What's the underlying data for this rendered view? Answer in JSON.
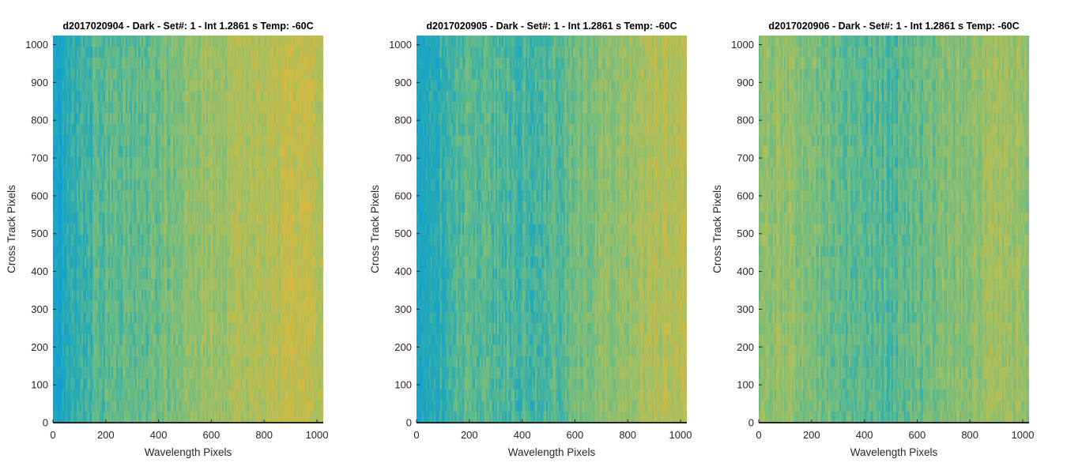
{
  "chart_data": [
    {
      "type": "heatmap",
      "title": "d2017020904 - Dark - Set#: 1 - Int 1.2861 s Temp: -60C",
      "xlabel": "Wavelength Pixels",
      "ylabel": "Cross Track Pixels",
      "xlim": [
        0,
        1024
      ],
      "ylim": [
        0,
        1024
      ],
      "xticks": [
        "0",
        "200",
        "400",
        "600",
        "800",
        "1000"
      ],
      "yticks": [
        "0",
        "100",
        "200",
        "300",
        "400",
        "500",
        "600",
        "700",
        "800",
        "900",
        "1000"
      ],
      "colormap": [
        "#0f9dd4",
        "#28abb4",
        "#6cbc84",
        "#a8bf5e",
        "#d7b93f"
      ],
      "column_level_profile": [
        {
          "x": 0,
          "level": 0.05
        },
        {
          "x": 100,
          "level": 0.3
        },
        {
          "x": 200,
          "level": 0.45
        },
        {
          "x": 300,
          "level": 0.45
        },
        {
          "x": 400,
          "level": 0.5
        },
        {
          "x": 500,
          "level": 0.62
        },
        {
          "x": 600,
          "level": 0.7
        },
        {
          "x": 700,
          "level": 0.74
        },
        {
          "x": 800,
          "level": 0.82
        },
        {
          "x": 900,
          "level": 0.88
        },
        {
          "x": 1024,
          "level": 0.85
        }
      ]
    },
    {
      "type": "heatmap",
      "title": "d2017020905 - Dark - Set#: 1 - Int 1.2861 s Temp: -60C",
      "xlabel": "Wavelength Pixels",
      "ylabel": "Cross Track Pixels",
      "xlim": [
        0,
        1024
      ],
      "ylim": [
        0,
        1024
      ],
      "xticks": [
        "0",
        "200",
        "400",
        "600",
        "800",
        "1000"
      ],
      "yticks": [
        "0",
        "100",
        "200",
        "300",
        "400",
        "500",
        "600",
        "700",
        "800",
        "900",
        "1000"
      ],
      "colormap": [
        "#0f9dd4",
        "#28abb4",
        "#6cbc84",
        "#a8bf5e",
        "#d7b93f"
      ],
      "column_level_profile": [
        {
          "x": 0,
          "level": 0.15
        },
        {
          "x": 100,
          "level": 0.3
        },
        {
          "x": 200,
          "level": 0.45
        },
        {
          "x": 300,
          "level": 0.42
        },
        {
          "x": 400,
          "level": 0.35
        },
        {
          "x": 500,
          "level": 0.4
        },
        {
          "x": 600,
          "level": 0.52
        },
        {
          "x": 700,
          "level": 0.6
        },
        {
          "x": 800,
          "level": 0.68
        },
        {
          "x": 900,
          "level": 0.8
        },
        {
          "x": 1024,
          "level": 0.82
        }
      ]
    },
    {
      "type": "heatmap",
      "title": "d2017020906 - Dark - Set#: 1 - Int 1.2861 s Temp: -60C",
      "xlabel": "Wavelength Pixels",
      "ylabel": "Cross Track Pixels",
      "xlim": [
        0,
        1024
      ],
      "ylim": [
        0,
        1024
      ],
      "xticks": [
        "0",
        "200",
        "400",
        "600",
        "800",
        "1000"
      ],
      "yticks": [
        "0",
        "100",
        "200",
        "300",
        "400",
        "500",
        "600",
        "700",
        "800",
        "900",
        "1000"
      ],
      "colormap": [
        "#0f9dd4",
        "#28abb4",
        "#6cbc84",
        "#a8bf5e",
        "#d7b93f"
      ],
      "column_level_profile": [
        {
          "x": 0,
          "level": 0.62
        },
        {
          "x": 100,
          "level": 0.66
        },
        {
          "x": 200,
          "level": 0.6
        },
        {
          "x": 300,
          "level": 0.5
        },
        {
          "x": 400,
          "level": 0.42
        },
        {
          "x": 500,
          "level": 0.4
        },
        {
          "x": 600,
          "level": 0.48
        },
        {
          "x": 700,
          "level": 0.56
        },
        {
          "x": 800,
          "level": 0.64
        },
        {
          "x": 900,
          "level": 0.7
        },
        {
          "x": 1024,
          "level": 0.68
        }
      ]
    }
  ]
}
